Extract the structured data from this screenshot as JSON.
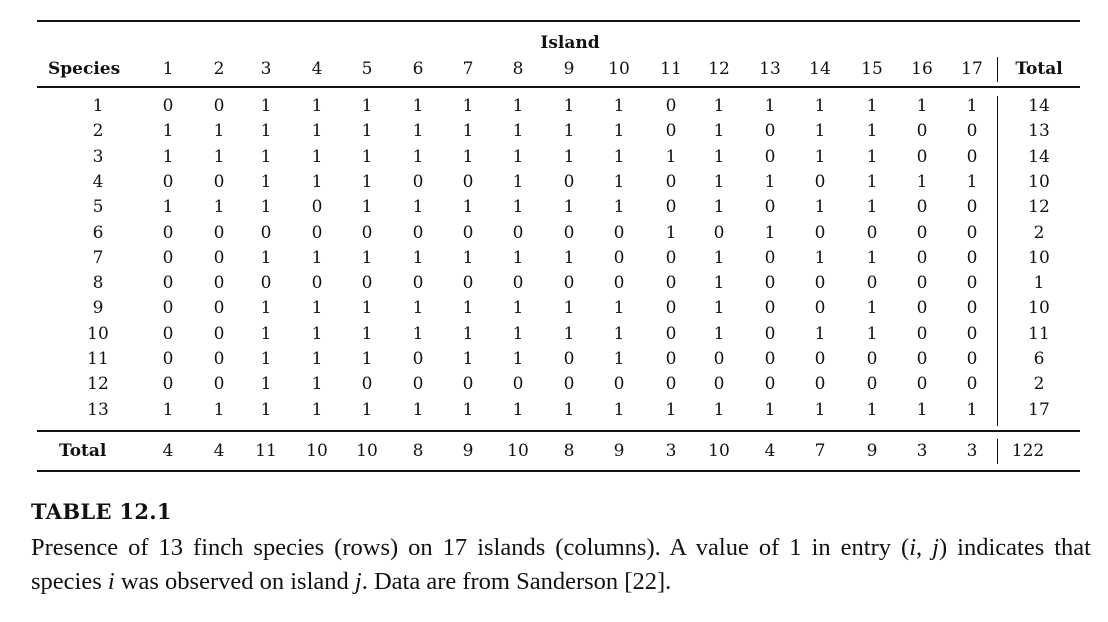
{
  "table": {
    "group_header": "Island",
    "row_header": "Species",
    "total_header": "Total",
    "island_labels": [
      "1",
      "2",
      "3",
      "4",
      "5",
      "6",
      "7",
      "8",
      "9",
      "10",
      "11",
      "12",
      "13",
      "14",
      "15",
      "16",
      "17"
    ],
    "rows": [
      {
        "species": "1",
        "cells": [
          "0",
          "0",
          "1",
          "1",
          "1",
          "1",
          "1",
          "1",
          "1",
          "1",
          "0",
          "1",
          "1",
          "1",
          "1",
          "1",
          "1"
        ],
        "total": "14"
      },
      {
        "species": "2",
        "cells": [
          "1",
          "1",
          "1",
          "1",
          "1",
          "1",
          "1",
          "1",
          "1",
          "1",
          "0",
          "1",
          "0",
          "1",
          "1",
          "0",
          "0"
        ],
        "total": "13"
      },
      {
        "species": "3",
        "cells": [
          "1",
          "1",
          "1",
          "1",
          "1",
          "1",
          "1",
          "1",
          "1",
          "1",
          "1",
          "1",
          "0",
          "1",
          "1",
          "0",
          "0"
        ],
        "total": "14"
      },
      {
        "species": "4",
        "cells": [
          "0",
          "0",
          "1",
          "1",
          "1",
          "0",
          "0",
          "1",
          "0",
          "1",
          "0",
          "1",
          "1",
          "0",
          "1",
          "1",
          "1"
        ],
        "total": "10"
      },
      {
        "species": "5",
        "cells": [
          "1",
          "1",
          "1",
          "0",
          "1",
          "1",
          "1",
          "1",
          "1",
          "1",
          "0",
          "1",
          "0",
          "1",
          "1",
          "0",
          "0"
        ],
        "total": "12"
      },
      {
        "species": "6",
        "cells": [
          "0",
          "0",
          "0",
          "0",
          "0",
          "0",
          "0",
          "0",
          "0",
          "0",
          "1",
          "0",
          "1",
          "0",
          "0",
          "0",
          "0"
        ],
        "total": "2"
      },
      {
        "species": "7",
        "cells": [
          "0",
          "0",
          "1",
          "1",
          "1",
          "1",
          "1",
          "1",
          "1",
          "0",
          "0",
          "1",
          "0",
          "1",
          "1",
          "0",
          "0"
        ],
        "total": "10"
      },
      {
        "species": "8",
        "cells": [
          "0",
          "0",
          "0",
          "0",
          "0",
          "0",
          "0",
          "0",
          "0",
          "0",
          "0",
          "1",
          "0",
          "0",
          "0",
          "0",
          "0"
        ],
        "total": "1"
      },
      {
        "species": "9",
        "cells": [
          "0",
          "0",
          "1",
          "1",
          "1",
          "1",
          "1",
          "1",
          "1",
          "1",
          "0",
          "1",
          "0",
          "0",
          "1",
          "0",
          "0"
        ],
        "total": "10"
      },
      {
        "species": "10",
        "cells": [
          "0",
          "0",
          "1",
          "1",
          "1",
          "1",
          "1",
          "1",
          "1",
          "1",
          "0",
          "1",
          "0",
          "1",
          "1",
          "0",
          "0"
        ],
        "total": "11"
      },
      {
        "species": "11",
        "cells": [
          "0",
          "0",
          "1",
          "1",
          "1",
          "0",
          "1",
          "1",
          "0",
          "1",
          "0",
          "0",
          "0",
          "0",
          "0",
          "0",
          "0"
        ],
        "total": "6"
      },
      {
        "species": "12",
        "cells": [
          "0",
          "0",
          "1",
          "1",
          "0",
          "0",
          "0",
          "0",
          "0",
          "0",
          "0",
          "0",
          "0",
          "0",
          "0",
          "0",
          "0"
        ],
        "total": "2"
      },
      {
        "species": "13",
        "cells": [
          "1",
          "1",
          "1",
          "1",
          "1",
          "1",
          "1",
          "1",
          "1",
          "1",
          "1",
          "1",
          "1",
          "1",
          "1",
          "1",
          "1"
        ],
        "total": "17"
      }
    ],
    "total_row": {
      "label": "Total",
      "cells": [
        "4",
        "4",
        "11",
        "10",
        "10",
        "8",
        "9",
        "10",
        "8",
        "9",
        "3",
        "10",
        "4",
        "7",
        "9",
        "3",
        "3"
      ],
      "grand_total": "122"
    }
  },
  "caption": {
    "title": "TABLE 12.1",
    "text_part1": "Presence of 13 finch species (rows) on 17 islands (columns). A value of 1 in entry (",
    "var_i": "i",
    "comma": ", ",
    "var_j": "j",
    "text_part2": ") indicates that species ",
    "var_i2": "i",
    "text_part3": " was observed on island ",
    "var_j2": "j",
    "text_part4": ". Data are from Sanderson [22]."
  }
}
